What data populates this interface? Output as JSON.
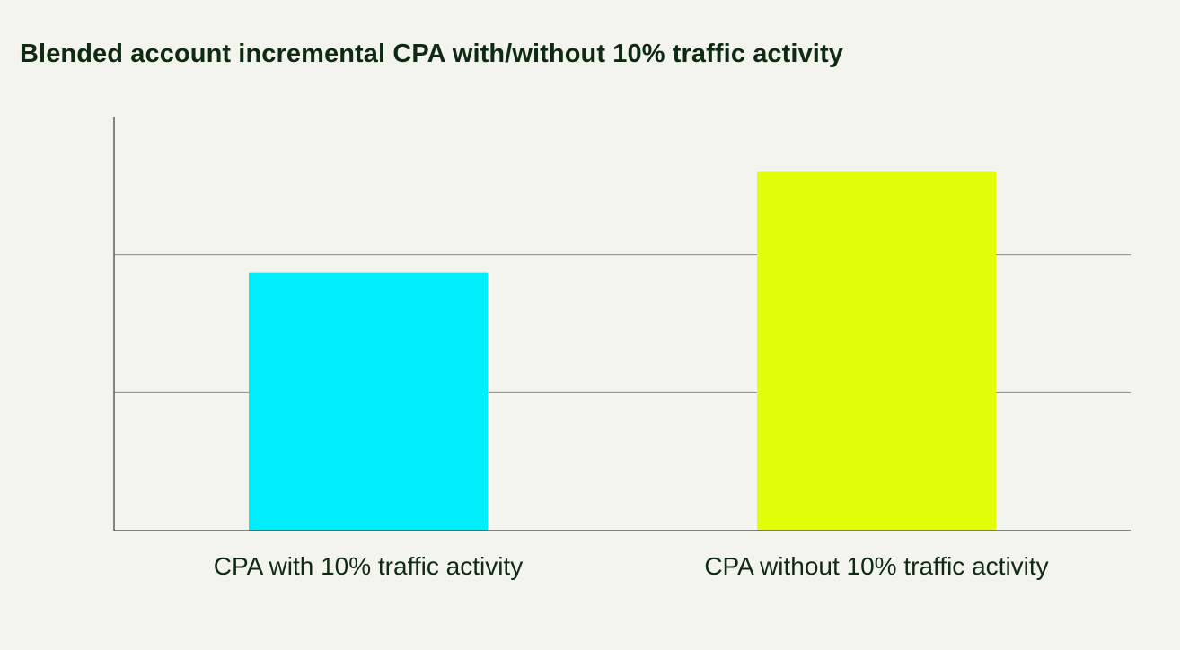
{
  "chart_data": {
    "type": "bar",
    "title": "Blended account incremental CPA with/without 10% traffic activity",
    "xlabel": "",
    "ylabel": "",
    "categories": [
      "CPA with 10% traffic activity",
      "CPA without 10% traffic activity"
    ],
    "values": [
      1.87,
      2.6
    ],
    "colors": [
      "#00eefc",
      "#e2ff08"
    ],
    "ylim": [
      0,
      3
    ],
    "gridlines": [
      1,
      2
    ],
    "grid": true,
    "y_tick_labels_shown": false,
    "legend": "none"
  },
  "colors": {
    "background": "#f4f4ef",
    "text": "#0f2a12",
    "axis": "#3a3a3a",
    "grid": "#8a8a8a"
  }
}
